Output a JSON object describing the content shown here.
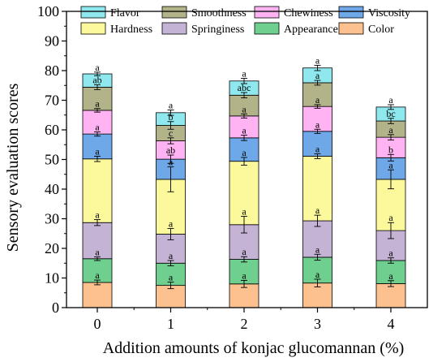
{
  "chart_data": {
    "type": "bar",
    "stacked": true,
    "xlabel": "Addition amounts of konjac glucomannan (%)",
    "ylabel": "Sensory evaluation scores",
    "ylim": [
      0,
      100
    ],
    "yticks": [
      0,
      10,
      20,
      30,
      40,
      50,
      60,
      70,
      80,
      90,
      100
    ],
    "categories": [
      "0",
      "1",
      "2",
      "3",
      "4"
    ],
    "grid": false,
    "legend_position": "top",
    "series": [
      {
        "name": "Color",
        "color": "#FDC18F",
        "values": [
          8.5,
          7.5,
          8.0,
          8.3,
          8.1
        ],
        "errors": [
          0.8,
          1.1,
          1.2,
          1.3,
          1.0
        ],
        "letters": [
          "a",
          "a",
          "a",
          "a",
          "a"
        ]
      },
      {
        "name": "Appearance",
        "color": "#6FCF8F",
        "values": [
          8.0,
          7.5,
          8.3,
          8.7,
          7.8
        ],
        "errors": [
          0.6,
          0.9,
          0.9,
          1.0,
          0.9
        ],
        "letters": [
          "a",
          "a",
          "a",
          "a",
          "a"
        ]
      },
      {
        "name": "Springiness",
        "color": "#C5B3D6",
        "values": [
          12.2,
          9.8,
          11.7,
          12.3,
          10.1
        ],
        "errors": [
          1.0,
          1.9,
          2.8,
          1.9,
          2.7
        ],
        "letters": [
          "a",
          "a",
          "a",
          "a",
          "a"
        ]
      },
      {
        "name": "Hardness",
        "color": "#FCF99C",
        "values": [
          21.5,
          18.5,
          21.4,
          21.8,
          17.3
        ],
        "errors": [
          0.9,
          4.2,
          1.3,
          0.8,
          3.2
        ],
        "letters": [
          "a",
          "a",
          "a",
          "a",
          "a"
        ]
      },
      {
        "name": "Viscosity",
        "color": "#6FA8E8",
        "values": [
          8.4,
          6.8,
          7.9,
          8.4,
          7.3
        ],
        "errors": [
          0.7,
          1.4,
          0.9,
          0.7,
          1.1
        ],
        "letters": [
          "a",
          "ab",
          "a",
          "a",
          "b"
        ]
      },
      {
        "name": "Chewiness",
        "color": "#FFB3F2",
        "values": [
          8.0,
          6.2,
          7.4,
          8.4,
          6.9
        ],
        "errors": [
          0.6,
          1.0,
          0.7,
          0.6,
          0.9
        ],
        "letters": [
          "a",
          "c",
          "a",
          "a",
          "a"
        ]
      },
      {
        "name": "Smoothness",
        "color": "#B3B38A",
        "values": [
          7.8,
          5.2,
          7.0,
          8.0,
          5.5
        ],
        "errors": [
          0.8,
          1.3,
          0.9,
          0.8,
          0.9
        ],
        "letters": [
          "ab",
          "b",
          "abc",
          "a",
          "bc"
        ]
      },
      {
        "name": "Flavor",
        "color": "#8FE8EE",
        "values": [
          4.5,
          4.3,
          4.8,
          5.0,
          4.7
        ],
        "errors": [
          0.6,
          0.9,
          0.9,
          0.9,
          0.8
        ],
        "letters": [
          "a",
          "a",
          "a",
          "a",
          "a"
        ]
      }
    ],
    "legend_rows": [
      [
        "Flavor",
        "Smoothness",
        "Chewiness",
        "Viscosity"
      ],
      [
        "Hardness",
        "Springiness",
        "Appearance",
        "Color"
      ]
    ]
  }
}
